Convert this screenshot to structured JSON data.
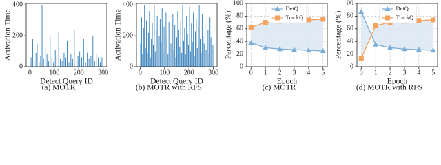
{
  "chart_data": [
    {
      "type": "stem",
      "caption": "(a) MOTR",
      "xlabel": "Detect Query ID",
      "ylabel": "Activation Time",
      "color": "#2f7bb8",
      "x": [
        5,
        12,
        18,
        25,
        30,
        38,
        44,
        50,
        56,
        63,
        70,
        77,
        83,
        90,
        97,
        104,
        110,
        118,
        125,
        132,
        140,
        147,
        153,
        160,
        168,
        175,
        182,
        190,
        197,
        204,
        212,
        220,
        228,
        235,
        242,
        250,
        258,
        265,
        272,
        280,
        288,
        295
      ],
      "values": [
        60,
        180,
        40,
        90,
        150,
        30,
        70,
        400,
        50,
        120,
        80,
        40,
        200,
        60,
        30,
        110,
        70,
        230,
        50,
        40,
        90,
        60,
        170,
        30,
        80,
        50,
        240,
        40,
        70,
        100,
        60,
        180,
        30,
        90,
        50,
        70,
        200,
        40,
        80,
        60,
        30,
        60
      ],
      "xlim": [
        -15,
        315
      ],
      "xticks": [
        0,
        100,
        200,
        300
      ],
      "ylim": [
        0,
        410
      ],
      "yticks": [
        0,
        200,
        400
      ]
    },
    {
      "type": "stem",
      "caption": "(b) MOTR with RFS",
      "xlabel": "Detect Query ID",
      "ylabel": "Activation Time",
      "color": "#2f7bb8",
      "x": [
        2,
        6,
        10,
        14,
        18,
        22,
        26,
        30,
        34,
        38,
        42,
        46,
        50,
        54,
        58,
        62,
        66,
        70,
        74,
        78,
        82,
        86,
        90,
        94,
        98,
        102,
        106,
        110,
        114,
        118,
        122,
        126,
        130,
        134,
        138,
        142,
        146,
        150,
        154,
        158,
        162,
        166,
        170,
        174,
        178,
        182,
        186,
        190,
        194,
        198,
        202,
        206,
        210,
        214,
        218,
        222,
        226,
        230,
        234,
        238,
        242,
        246,
        250,
        254,
        258,
        262,
        266,
        270,
        274,
        278,
        282,
        286,
        290,
        294,
        298
      ],
      "values": [
        150,
        320,
        80,
        250,
        400,
        120,
        300,
        90,
        220,
        360,
        60,
        180,
        280,
        140,
        400,
        100,
        240,
        330,
        70,
        200,
        310,
        160,
        380,
        90,
        260,
        130,
        350,
        200,
        80,
        290,
        400,
        150,
        220,
        340,
        110,
        270,
        60,
        190,
        360,
        240,
        130,
        300,
        90,
        400,
        170,
        250,
        80,
        330,
        210,
        140,
        390,
        100,
        280,
        160,
        350,
        70,
        230,
        310,
        120,
        260,
        400,
        180,
        90,
        340,
        200,
        150,
        290,
        110,
        370,
        240,
        80,
        320,
        190,
        260,
        140
      ],
      "xlim": [
        -15,
        315
      ],
      "xticks": [
        0,
        100,
        200,
        300
      ],
      "ylim": [
        0,
        410
      ],
      "yticks": [
        0,
        200,
        400
      ]
    },
    {
      "type": "line",
      "caption": "(c) MOTR",
      "xlabel": "Epoch",
      "ylabel": "Percentage (%)",
      "grid": true,
      "legend": "upper center",
      "x": [
        0,
        1,
        2,
        3,
        4,
        5
      ],
      "series": [
        {
          "name": "DetQ",
          "color": "#7aaed6",
          "marker": "triangle",
          "values": [
            38,
            30,
            28,
            27,
            26,
            25
          ]
        },
        {
          "name": "TrackQ",
          "color": "#f5a25d",
          "marker": "square",
          "values": [
            62,
            70,
            72,
            73,
            74,
            75
          ]
        }
      ],
      "xlim": [
        -0.3,
        5.3
      ],
      "xticks": [
        0,
        1,
        2,
        3,
        4,
        5
      ],
      "ylim": [
        0,
        100
      ],
      "yticks": [
        0,
        20,
        40,
        60,
        80,
        100
      ]
    },
    {
      "type": "line",
      "caption": "(d) MOTR with RFS",
      "xlabel": "Epoch",
      "ylabel": "Percentage (%)",
      "grid": true,
      "legend": "upper center",
      "x": [
        0,
        1,
        2,
        3,
        4,
        5
      ],
      "series": [
        {
          "name": "DetQ",
          "color": "#7aaed6",
          "marker": "triangle",
          "values": [
            87,
            35,
            30,
            28,
            27,
            26
          ]
        },
        {
          "name": "TrackQ",
          "color": "#f5a25d",
          "marker": "square",
          "values": [
            13,
            65,
            70,
            72,
            73,
            74
          ]
        }
      ],
      "xlim": [
        -0.3,
        5.3
      ],
      "xticks": [
        0,
        1,
        2,
        3,
        4,
        5
      ],
      "ylim": [
        0,
        100
      ],
      "yticks": [
        0,
        20,
        40,
        60,
        80,
        100
      ]
    }
  ]
}
